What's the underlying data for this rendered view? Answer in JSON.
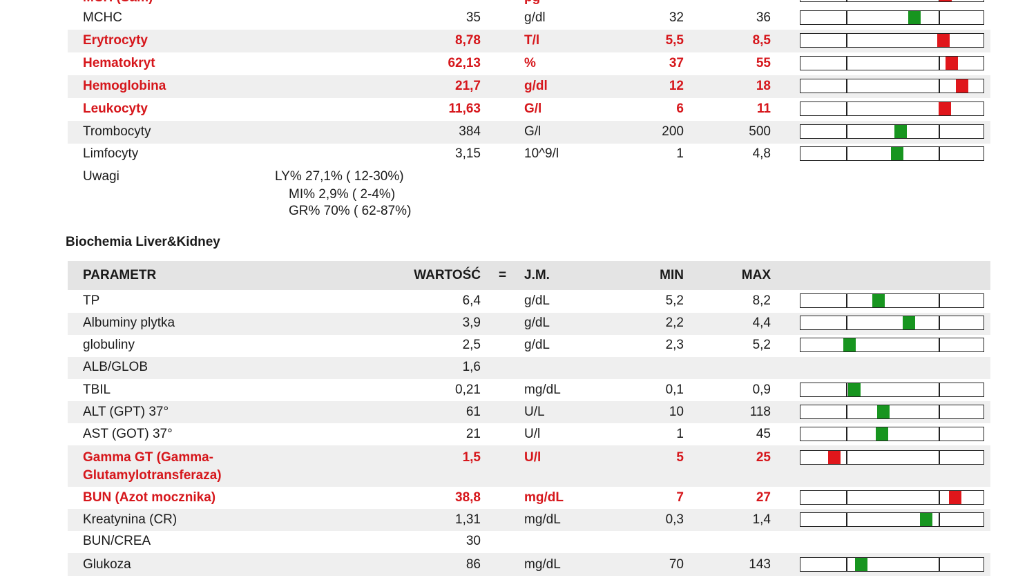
{
  "blood_top_clipped": {
    "name": "MCH (Sam)",
    "unit": "pg",
    "marker_pos": 0.82,
    "status": "high"
  },
  "blood_rows": [
    {
      "name": "MCHC",
      "value": "35",
      "unit": "g/dl",
      "min": "32",
      "max": "36",
      "status": "normal",
      "marker_pos": 0.63
    },
    {
      "name": "Erytrocyty",
      "value": "8,78",
      "unit": "T/l",
      "min": "5,5",
      "max": "8,5",
      "status": "high",
      "marker_pos": 0.8
    },
    {
      "name": "Hematokryt",
      "value": "62,13",
      "unit": "%",
      "min": "37",
      "max": "55",
      "status": "high",
      "marker_pos": 0.85
    },
    {
      "name": "Hemoglobina",
      "value": "21,7",
      "unit": "g/dl",
      "min": "12",
      "max": "18",
      "status": "high",
      "marker_pos": 0.91
    },
    {
      "name": "Leukocyty",
      "value": "11,63",
      "unit": "G/l",
      "min": "6",
      "max": "11",
      "status": "high",
      "marker_pos": 0.81
    },
    {
      "name": "Trombocyty",
      "value": "384",
      "unit": "G/l",
      "min": "200",
      "max": "500",
      "status": "normal",
      "marker_pos": 0.55
    },
    {
      "name": "Limfocyty",
      "value": "3,15",
      "unit": "10^9/l",
      "min": "1",
      "max": "4,8",
      "status": "normal",
      "marker_pos": 0.53
    }
  ],
  "notes": {
    "label": "Uwagi",
    "lines": [
      "LY% 27,1% ( 12-30%)",
      "MI% 2,9% ( 2-4%)",
      "GR% 70% ( 62-87%)"
    ]
  },
  "biochem": {
    "title": "Biochemia Liver&Kidney",
    "headers": {
      "param": "PARAMETR",
      "value": "WARTOŚĆ",
      "eq": "=",
      "unit": "J.M.",
      "min": "MIN",
      "max": "MAX"
    },
    "rows": [
      {
        "name": "TP",
        "value": "6,4",
        "unit": "g/dL",
        "min": "5,2",
        "max": "8,2",
        "status": "normal",
        "marker_pos": 0.42
      },
      {
        "name": "Albuminy plytka",
        "value": "3,9",
        "unit": "g/dL",
        "min": "2,2",
        "max": "4,4",
        "status": "normal",
        "marker_pos": 0.6
      },
      {
        "name": "globuliny",
        "value": "2,5",
        "unit": "g/dL",
        "min": "2,3",
        "max": "5,2",
        "status": "normal",
        "marker_pos": 0.25
      },
      {
        "name": "ALB/GLOB",
        "value": "1,6",
        "unit": "",
        "min": "",
        "max": "",
        "status": "none",
        "marker_pos": null
      },
      {
        "name": "TBIL",
        "value": "0,21",
        "unit": "mg/dL",
        "min": "0,1",
        "max": "0,9",
        "status": "normal",
        "marker_pos": 0.28
      },
      {
        "name": "ALT (GPT) 37°",
        "value": "61",
        "unit": "U/L",
        "min": "10",
        "max": "118",
        "status": "normal",
        "marker_pos": 0.45
      },
      {
        "name": "AST (GOT) 37°",
        "value": "21",
        "unit": "U/l",
        "min": "1",
        "max": "45",
        "status": "normal",
        "marker_pos": 0.44
      },
      {
        "name": "Gamma GT (Gamma-",
        "name2": "Glutamylotransferaza)",
        "value": "1,5",
        "unit": "U/l",
        "min": "5",
        "max": "25",
        "status": "low",
        "marker_pos": 0.16
      },
      {
        "name": "BUN (Azot mocznika)",
        "value": "38,8",
        "unit": "mg/dL",
        "min": "7",
        "max": "27",
        "status": "high",
        "marker_pos": 0.87
      },
      {
        "name": "Kreatynina (CR)",
        "value": "1,31",
        "unit": "mg/dL",
        "min": "0,3",
        "max": "1,4",
        "status": "normal",
        "marker_pos": 0.7
      },
      {
        "name": "BUN/CREA",
        "value": "30",
        "unit": "",
        "min": "",
        "max": "",
        "status": "none",
        "marker_pos": null
      },
      {
        "name": "Glukoza",
        "value": "86",
        "unit": "mg/dL",
        "min": "70",
        "max": "143",
        "status": "normal",
        "marker_pos": 0.32
      }
    ]
  },
  "colors": {
    "normal": "#17951f",
    "abnormal": "#e0161b",
    "abnormal_text": "#d6161b",
    "shade": "#efefef",
    "header": "#e4e4e4"
  }
}
